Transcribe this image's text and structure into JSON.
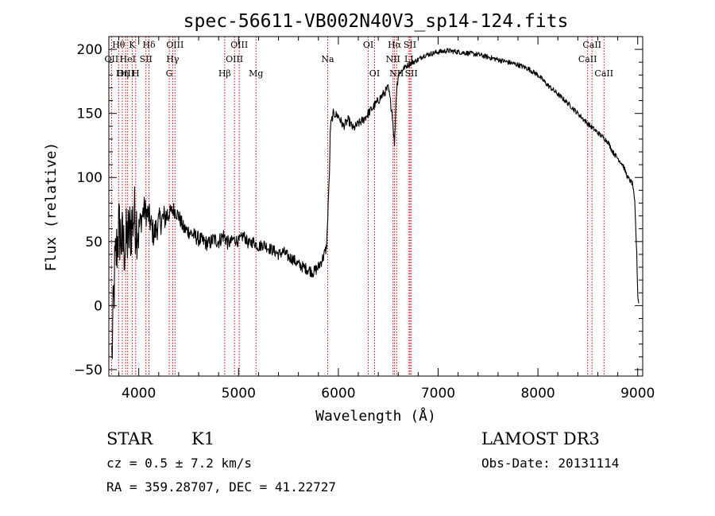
{
  "chart_data": {
    "type": "line",
    "title": "spec-56611-VB002N40V3_sp14-124.fits",
    "xlabel": "Wavelength (Å)",
    "ylabel": "Flux (relative)",
    "xlim": [
      3700,
      9050
    ],
    "ylim": [
      -55,
      210
    ],
    "x_ticks": [
      4000,
      5000,
      6000,
      7000,
      8000,
      9000
    ],
    "x_tick_labels": [
      "4000",
      "5000",
      "6000",
      "7000",
      "8000",
      "9000"
    ],
    "y_ticks": [
      -50,
      0,
      50,
      100,
      150,
      200
    ],
    "y_tick_labels": [
      "−50",
      "0",
      "50",
      "100",
      "150",
      "200"
    ],
    "grid": false,
    "series": [
      {
        "name": "spectrum",
        "x": [
          3730,
          3760,
          3800,
          3850,
          3900,
          3950,
          4000,
          4050,
          4100,
          4150,
          4200,
          4250,
          4300,
          4350,
          4400,
          4450,
          4500,
          4550,
          4600,
          4650,
          4700,
          4750,
          4800,
          4850,
          4900,
          4950,
          5000,
          5050,
          5100,
          5150,
          5200,
          5250,
          5300,
          5350,
          5400,
          5450,
          5500,
          5550,
          5600,
          5650,
          5700,
          5750,
          5800,
          5850,
          5880,
          5890,
          5900,
          5910,
          5920,
          5950,
          6000,
          6050,
          6100,
          6150,
          6200,
          6250,
          6300,
          6350,
          6400,
          6450,
          6500,
          6540,
          6563,
          6580,
          6600,
          6650,
          6700,
          6750,
          6800,
          6850,
          6900,
          6950,
          7000,
          7100,
          7200,
          7300,
          7400,
          7500,
          7600,
          7700,
          7800,
          7900,
          8000,
          8100,
          8200,
          8300,
          8400,
          8500,
          8600,
          8700,
          8750,
          8800,
          8850,
          8900,
          8950,
          8970,
          8990,
          9000,
          9010
        ],
        "y": [
          -40,
          30,
          60,
          45,
          55,
          70,
          60,
          75,
          70,
          55,
          65,
          68,
          72,
          75,
          70,
          60,
          58,
          55,
          52,
          50,
          48,
          52,
          50,
          55,
          48,
          52,
          50,
          55,
          48,
          50,
          46,
          48,
          45,
          43,
          40,
          42,
          38,
          36,
          32,
          30,
          28,
          26,
          30,
          38,
          45,
          60,
          85,
          100,
          140,
          150,
          148,
          140,
          145,
          138,
          142,
          145,
          150,
          155,
          160,
          165,
          170,
          150,
          125,
          165,
          180,
          185,
          188,
          190,
          192,
          195,
          196,
          197,
          198,
          199,
          198,
          197,
          196,
          194,
          192,
          190,
          188,
          185,
          180,
          172,
          165,
          158,
          150,
          142,
          135,
          128,
          120,
          115,
          110,
          100,
          95,
          80,
          40,
          8,
          2
        ]
      }
    ],
    "spectral_lines": [
      {
        "label": "Hθ",
        "x": 3798,
        "row": 1
      },
      {
        "label": "OII",
        "x": 3727,
        "row": 2
      },
      {
        "label": "OIII",
        "x": 3869,
        "row": 3
      },
      {
        "label": "Hη",
        "x": 3835,
        "row": 3
      },
      {
        "label": "K",
        "x": 3934,
        "row": 1
      },
      {
        "label": "HeI",
        "x": 3889,
        "row": 2
      },
      {
        "label": "SII",
        "x": 4072,
        "row": 2
      },
      {
        "label": "H",
        "x": 3969,
        "row": 3
      },
      {
        "label": "Hδ",
        "x": 4102,
        "row": 1
      },
      {
        "label": "OIII",
        "x": 4363,
        "row": 1
      },
      {
        "label": "Hγ",
        "x": 4340,
        "row": 2
      },
      {
        "label": "G",
        "x": 4305,
        "row": 3
      },
      {
        "label": "Hβ",
        "x": 4861,
        "row": 3
      },
      {
        "label": "OIII",
        "x": 5007,
        "row": 1
      },
      {
        "label": "OIII",
        "x": 4959,
        "row": 2
      },
      {
        "label": "Mg",
        "x": 5175,
        "row": 3
      },
      {
        "label": "Na",
        "x": 5893,
        "row": 2
      },
      {
        "label": "OI",
        "x": 6300,
        "row": 1
      },
      {
        "label": "OI",
        "x": 6363,
        "row": 3
      },
      {
        "label": "Hα",
        "x": 6563,
        "row": 1
      },
      {
        "label": "SII",
        "x": 6717,
        "row": 1
      },
      {
        "label": "NII",
        "x": 6548,
        "row": 2
      },
      {
        "label": "LI",
        "x": 6708,
        "row": 2
      },
      {
        "label": "NII",
        "x": 6584,
        "row": 3
      },
      {
        "label": "SII",
        "x": 6731,
        "row": 3
      },
      {
        "label": "CaII",
        "x": 8542,
        "row": 1
      },
      {
        "label": "CaII",
        "x": 8498,
        "row": 2
      },
      {
        "label": "CaII",
        "x": 8662,
        "row": 3
      }
    ]
  },
  "info": {
    "class": "STAR",
    "subclass": "K1",
    "cz": "cz = 0.5 ± 7.2 km/s",
    "coords": "RA = 359.28707, DEC =  41.22727",
    "survey": "LAMOST DR3",
    "obs_date": "Obs-Date: 20131114"
  },
  "colors": {
    "line": "#000000",
    "marker": "#cc0000"
  }
}
